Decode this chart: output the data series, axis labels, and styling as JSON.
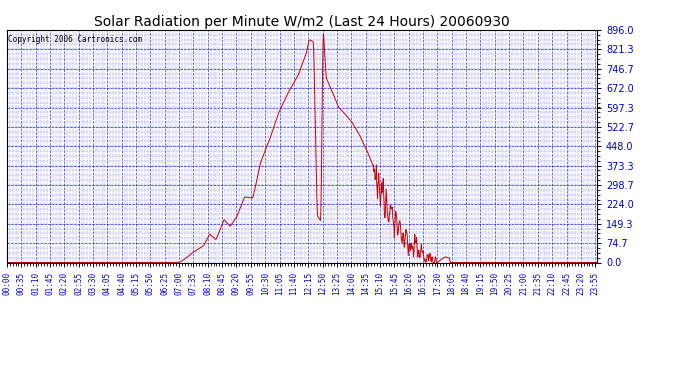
{
  "title": "Solar Radiation per Minute W/m2 (Last 24 Hours) 20060930",
  "copyright": "Copyright 2006 Cartronics.com",
  "line_color": "#cc0000",
  "background_color": "#ffffff",
  "plot_bg_color": "#ffffff",
  "grid_color": "#0000cc",
  "tick_label_color": "#0000cc",
  "title_color": "#000000",
  "ymin": 0.0,
  "ymax": 896.0,
  "yticks": [
    0.0,
    74.7,
    149.3,
    224.0,
    298.7,
    373.3,
    448.0,
    522.7,
    597.3,
    672.0,
    746.7,
    821.3,
    896.0
  ],
  "num_minutes": 1440,
  "tick_interval": 35
}
